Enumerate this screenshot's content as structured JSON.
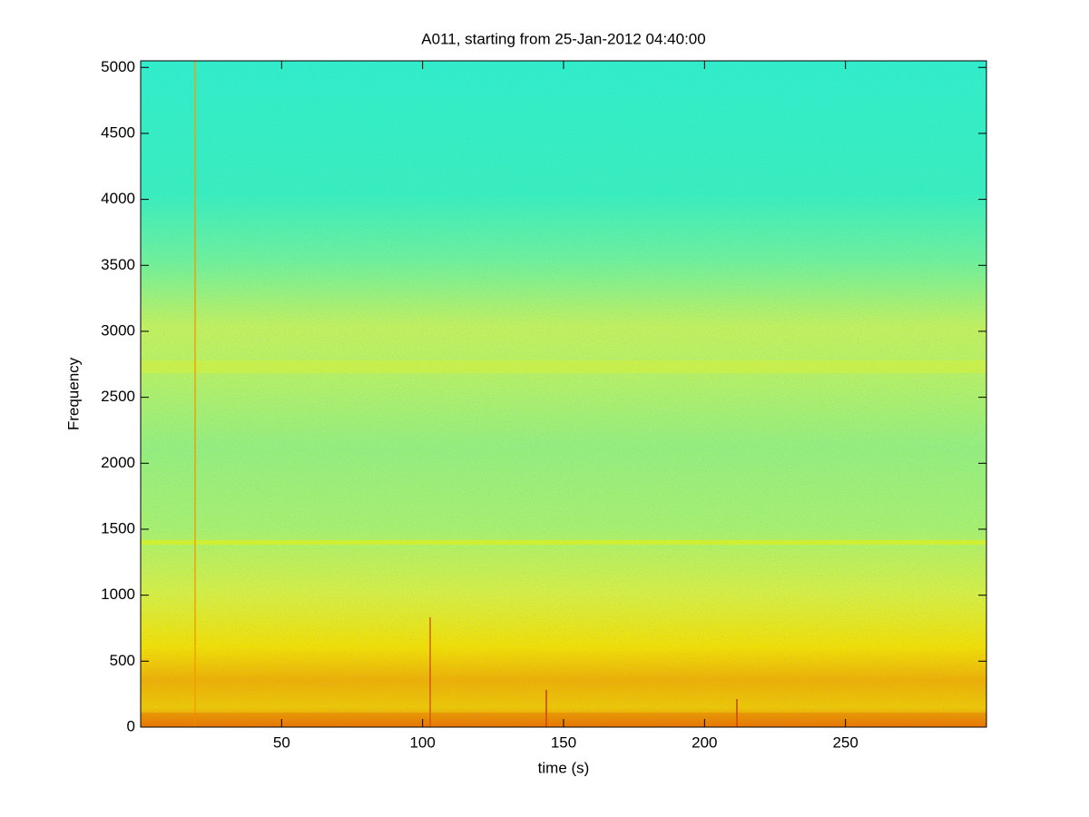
{
  "chart_data": {
    "type": "spectrogram",
    "title": "A011, starting from 25-Jan-2012 04:40:00",
    "x_label": "time (s)",
    "y_label": "Frequency",
    "xlim": [
      0,
      300
    ],
    "ylim": [
      0,
      5050
    ],
    "xticks": [
      50,
      100,
      150,
      200,
      250
    ],
    "yticks": [
      0,
      500,
      1000,
      1500,
      2000,
      2500,
      3000,
      3500,
      4000,
      4500,
      5000
    ]
  }
}
